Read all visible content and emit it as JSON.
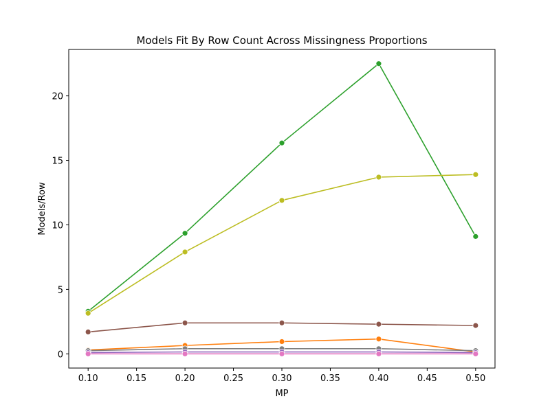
{
  "chart_data": {
    "type": "line",
    "title": "Models Fit By Row Count Across Missingness Proportions",
    "xlabel": "MP",
    "ylabel": "Models/Row",
    "xlim": [
      0.08,
      0.52
    ],
    "ylim": [
      -1.1,
      23.6
    ],
    "x": [
      0.1,
      0.2,
      0.3,
      0.4,
      0.5
    ],
    "xticks": [
      "0.10",
      "0.15",
      "0.20",
      "0.25",
      "0.30",
      "0.35",
      "0.40",
      "0.45",
      "0.50"
    ],
    "yticks": [
      "0",
      "5",
      "10",
      "15",
      "20"
    ],
    "grid": false,
    "legend": "none",
    "series": [
      {
        "color": "#2ca02c",
        "values": [
          3.3,
          9.35,
          16.35,
          22.5,
          9.1
        ]
      },
      {
        "color": "#bcbd22",
        "values": [
          3.15,
          7.9,
          11.9,
          13.7,
          13.9
        ]
      },
      {
        "color": "#8c564b",
        "values": [
          1.7,
          2.4,
          2.4,
          2.3,
          2.2
        ]
      },
      {
        "color": "#ff7f0e",
        "values": [
          0.3,
          0.65,
          0.95,
          1.15,
          0.15
        ]
      },
      {
        "color": "#7f7f7f",
        "values": [
          0.25,
          0.4,
          0.4,
          0.4,
          0.25
        ]
      },
      {
        "color": "#9467bd",
        "values": [
          0.1,
          0.15,
          0.15,
          0.15,
          0.1
        ]
      },
      {
        "color": "#e377c2",
        "values": [
          0.0,
          0.0,
          0.0,
          0.0,
          0.0
        ]
      }
    ]
  }
}
